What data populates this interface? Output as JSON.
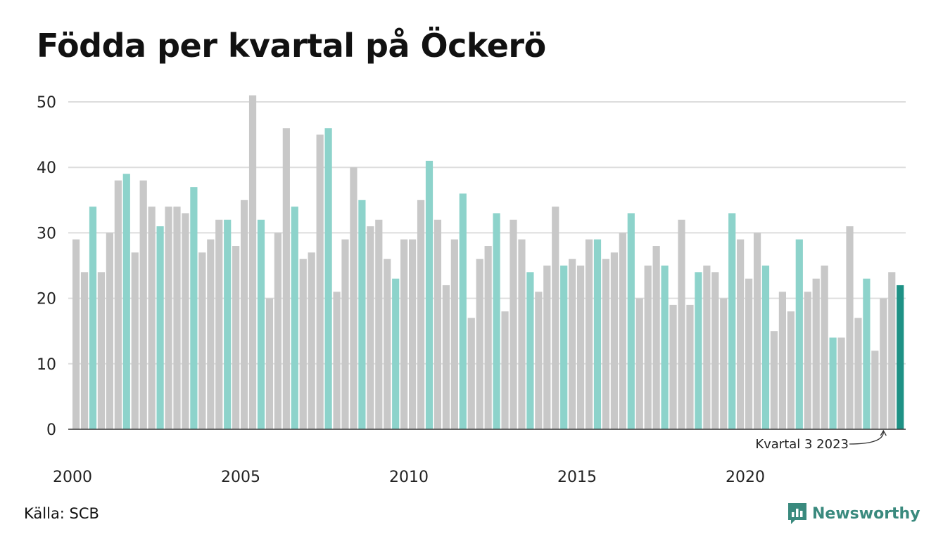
{
  "title": "Födda per kvartal på Öckerö",
  "source": "Källa: SCB",
  "brand": {
    "name": "Newsworthy",
    "icon": "bar-chart-speech-icon",
    "color": "#3a8a7e"
  },
  "colors": {
    "bar_default": "#c8c8c8",
    "bar_q3": "#8dd3cb",
    "bar_latest": "#1e9185",
    "grid": "#dddddd",
    "axis": "#333333"
  },
  "chart_data": {
    "type": "bar",
    "x_start_year": 2000,
    "y_ticks": [
      "0",
      "10",
      "20",
      "30",
      "40",
      "50"
    ],
    "x_ticks": [
      "2000",
      "2005",
      "2010",
      "2015",
      "2020"
    ],
    "ylim": [
      0,
      51
    ],
    "grid": true,
    "annotation": "Kvartal 3 2023",
    "values": [
      29,
      24,
      34,
      24,
      30,
      38,
      39,
      27,
      38,
      34,
      31,
      34,
      34,
      33,
      37,
      27,
      29,
      32,
      32,
      28,
      35,
      51,
      32,
      20,
      30,
      46,
      34,
      26,
      27,
      45,
      46,
      21,
      29,
      40,
      35,
      31,
      32,
      26,
      23,
      29,
      29,
      35,
      41,
      32,
      22,
      29,
      36,
      17,
      26,
      28,
      33,
      18,
      32,
      29,
      24,
      21,
      25,
      34,
      25,
      26,
      25,
      29,
      29,
      26,
      27,
      30,
      33,
      20,
      25,
      28,
      25,
      19,
      32,
      19,
      24,
      25,
      24,
      20,
      33,
      29,
      23,
      30,
      25,
      15,
      21,
      18,
      29,
      21,
      23,
      25,
      14,
      14,
      31,
      17,
      23,
      12,
      20,
      24,
      22
    ]
  }
}
